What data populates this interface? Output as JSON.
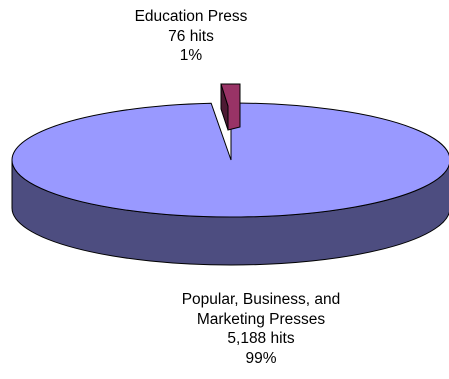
{
  "chart_data": {
    "type": "pie",
    "style": "3d-exploded",
    "slices": [
      {
        "name": "Education Press",
        "hits_label": "76 hits",
        "hits": 76,
        "percent_label": "1%",
        "percent": 1,
        "color": "#993366",
        "side_color": "#4d1a33"
      },
      {
        "name_lines": [
          "Popular, Business, and",
          "Marketing Presses"
        ],
        "hits_label": "5,188 hits",
        "hits": 5188,
        "percent_label": "99%",
        "percent": 99,
        "color": "#9999ff",
        "side_color": "#4d4d80"
      }
    ]
  }
}
